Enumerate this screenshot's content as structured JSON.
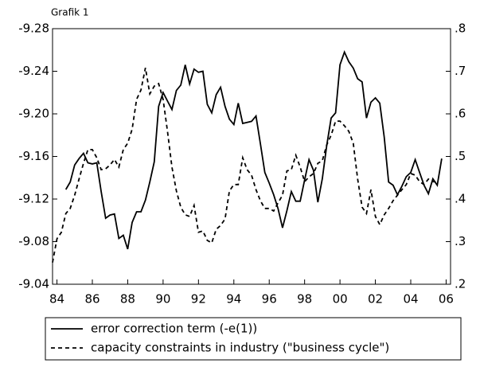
{
  "chart_data": {
    "type": "line",
    "title": "Grafik 1",
    "xlim": [
      1983.75,
      2006.25
    ],
    "xticks": [
      {
        "value": 1984,
        "label": "84"
      },
      {
        "value": 1986,
        "label": "86"
      },
      {
        "value": 1988,
        "label": "88"
      },
      {
        "value": 1990,
        "label": "90"
      },
      {
        "value": 1992,
        "label": "92"
      },
      {
        "value": 1994,
        "label": "94"
      },
      {
        "value": 1996,
        "label": "96"
      },
      {
        "value": 1998,
        "label": "98"
      },
      {
        "value": 2000,
        "label": "00"
      },
      {
        "value": 2002,
        "label": "02"
      },
      {
        "value": 2004,
        "label": "04"
      },
      {
        "value": 2006,
        "label": "06"
      }
    ],
    "ylim": [
      -9.04,
      -9.28
    ],
    "yticks": [
      -9.28,
      -9.24,
      {
        "value": -9.2,
        "label": "-9.20"
      },
      -9.16,
      -9.12,
      -9.08,
      -9.04
    ],
    "y2lim": [
      0.2,
      0.8
    ],
    "y2ticks": [
      {
        "value": 0.8,
        "label": ".8"
      },
      {
        "value": 0.7,
        "label": ".7"
      },
      {
        "value": 0.6,
        "label": ".6"
      },
      {
        "value": 0.5,
        "label": ".5"
      },
      {
        "value": 0.4,
        "label": ".4"
      },
      {
        "value": 0.3,
        "label": ".3"
      },
      {
        "value": 0.2,
        "label": ".2"
      }
    ],
    "series": [
      {
        "name": "error correction term (-e(1))",
        "color": "#000000",
        "style": "solid",
        "x": [
          1984.5,
          1984.75,
          1985,
          1985.25,
          1985.5,
          1985.75,
          1986,
          1986.25,
          1986.5,
          1986.75,
          1987,
          1987.25,
          1987.5,
          1987.75,
          1988,
          1988.25,
          1988.5,
          1988.75,
          1989,
          1989.25,
          1989.5,
          1989.75,
          1990,
          1990.25,
          1990.5,
          1990.75,
          1991,
          1991.25,
          1991.5,
          1991.75,
          1992,
          1992.25,
          1992.5,
          1992.75,
          1993,
          1993.25,
          1993.5,
          1993.75,
          1994,
          1994.25,
          1994.5,
          1994.75,
          1995,
          1995.25,
          1995.5,
          1995.75,
          1996,
          1996.25,
          1996.5,
          1996.75,
          1997,
          1997.25,
          1997.5,
          1997.75,
          1998,
          1998.25,
          1998.5,
          1998.75,
          1999,
          1999.25,
          1999.5,
          1999.75,
          2000,
          2000.25,
          2000.5,
          2000.75,
          2001,
          2001.25,
          2001.5,
          2001.75,
          2002,
          2002.25,
          2002.5,
          2002.75,
          2003,
          2003.25,
          2003.5,
          2003.75,
          2004,
          2004.25,
          2004.5,
          2004.75,
          2005,
          2005.25,
          2005.5,
          2005.75
        ],
        "values": [
          -9.129,
          -9.136,
          -9.152,
          -9.158,
          -9.163,
          -9.154,
          -9.153,
          -9.154,
          -9.127,
          -9.102,
          -9.105,
          -9.106,
          -9.083,
          -9.086,
          -9.073,
          -9.098,
          -9.108,
          -9.108,
          -9.119,
          -9.136,
          -9.155,
          -9.207,
          -9.22,
          -9.212,
          -9.204,
          -9.222,
          -9.227,
          -9.246,
          -9.228,
          -9.242,
          -9.239,
          -9.24,
          -9.209,
          -9.201,
          -9.218,
          -9.225,
          -9.207,
          -9.195,
          -9.19,
          -9.21,
          -9.191,
          -9.192,
          -9.193,
          -9.198,
          -9.172,
          -9.145,
          -9.135,
          -9.124,
          -9.111,
          -9.093,
          -9.109,
          -9.127,
          -9.118,
          -9.118,
          -9.138,
          -9.157,
          -9.147,
          -9.117,
          -9.139,
          -9.17,
          -9.196,
          -9.201,
          -9.246,
          -9.258,
          -9.249,
          -9.243,
          -9.233,
          -9.23,
          -9.196,
          -9.211,
          -9.215,
          -9.21,
          -9.178,
          -9.136,
          -9.133,
          -9.124,
          -9.132,
          -9.141,
          -9.145,
          -9.157,
          -9.145,
          -9.133,
          -9.125,
          -9.139,
          -9.133,
          -9.158
        ]
      },
      {
        "name": "capacity constraints in industry (\"business cycle\")",
        "color": "#000000",
        "style": "dashed",
        "axis": "y2",
        "x": [
          1983.75,
          1984,
          1984.25,
          1984.5,
          1984.75,
          1985,
          1985.25,
          1985.5,
          1985.75,
          1986,
          1986.25,
          1986.5,
          1986.75,
          1987,
          1987.25,
          1987.5,
          1987.75,
          1988,
          1988.25,
          1988.5,
          1988.75,
          1989,
          1989.25,
          1989.5,
          1989.75,
          1990,
          1990.25,
          1990.5,
          1990.75,
          1991,
          1991.25,
          1991.5,
          1991.75,
          1992,
          1992.25,
          1992.5,
          1992.75,
          1993,
          1993.25,
          1993.5,
          1993.75,
          1994,
          1994.25,
          1994.5,
          1994.75,
          1995,
          1995.25,
          1995.5,
          1995.75,
          1996,
          1996.25,
          1996.5,
          1996.75,
          1997,
          1997.25,
          1997.5,
          1997.75,
          1998,
          1998.25,
          1998.5,
          1998.75,
          1999,
          1999.25,
          1999.5,
          1999.75,
          2000,
          2000.25,
          2000.5,
          2000.75,
          2001,
          2001.25,
          2001.5,
          2001.75,
          2002,
          2002.25,
          2002.5,
          2002.75,
          2003,
          2003.25,
          2003.5,
          2003.75,
          2004,
          2004.25,
          2004.5,
          2004.75,
          2005,
          2005.25,
          2005.5
        ],
        "values": [
          0.251,
          0.307,
          0.322,
          0.366,
          0.378,
          0.409,
          0.447,
          0.484,
          0.516,
          0.516,
          0.497,
          0.469,
          0.471,
          0.48,
          0.493,
          0.475,
          0.516,
          0.531,
          0.564,
          0.634,
          0.656,
          0.708,
          0.647,
          0.665,
          0.671,
          0.634,
          0.559,
          0.475,
          0.419,
          0.381,
          0.363,
          0.359,
          0.385,
          0.322,
          0.325,
          0.303,
          0.297,
          0.329,
          0.338,
          0.353,
          0.419,
          0.434,
          0.434,
          0.497,
          0.469,
          0.456,
          0.422,
          0.396,
          0.378,
          0.378,
          0.372,
          0.391,
          0.409,
          0.466,
          0.469,
          0.503,
          0.475,
          0.441,
          0.452,
          0.46,
          0.484,
          0.49,
          0.527,
          0.55,
          0.583,
          0.583,
          0.572,
          0.559,
          0.531,
          0.447,
          0.381,
          0.366,
          0.422,
          0.359,
          0.34,
          0.363,
          0.378,
          0.396,
          0.409,
          0.422,
          0.434,
          0.46,
          0.456,
          0.441,
          0.434,
          0.447,
          0.441,
          0.44
        ]
      }
    ]
  }
}
